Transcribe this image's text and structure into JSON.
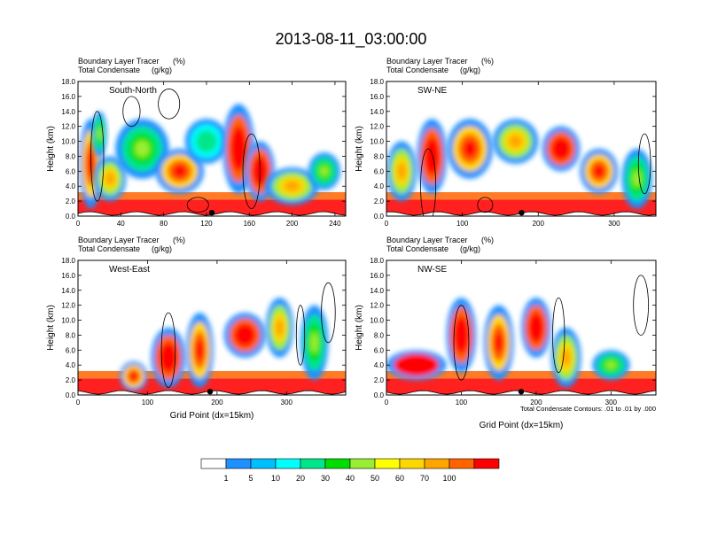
{
  "figure": {
    "title": "2013-08-11_03:00:00",
    "contour_note": "Total Condensate Contours: .01 to .01 by .000"
  },
  "colors": {
    "levels": [
      "#ffffff",
      "#1e90ff",
      "#00bfff",
      "#00ffff",
      "#00e68a",
      "#00dd00",
      "#99ee33",
      "#ffff00",
      "#ffd700",
      "#ffa500",
      "#ff6400",
      "#ff0000"
    ],
    "bottom_fill": "#ff2020",
    "contour": "#000000"
  },
  "colorbar": {
    "labels": [
      "1",
      "5",
      "10",
      "20",
      "30",
      "40",
      "50",
      "60",
      "70",
      "100"
    ]
  },
  "chart_data": [
    {
      "type": "heatmap",
      "name": "South-North",
      "subtitle_1_left": "Boundary Layer Tracer",
      "subtitle_1_right": "(%)",
      "subtitle_2_left": "Total Condensate",
      "subtitle_2_right": "(g/kg)",
      "ylabel": "Height (km)",
      "xlabel": "",
      "xlim": [
        0,
        250
      ],
      "ylim": [
        0,
        18
      ],
      "xticks": [
        0,
        40,
        80,
        120,
        160,
        200,
        240
      ],
      "xtick_labels": [
        "0",
        "40",
        "80",
        "120",
        "160",
        "200",
        "240"
      ],
      "yticks": [
        0,
        2,
        4,
        6,
        8,
        10,
        12,
        14,
        16,
        18
      ],
      "ytick_labels": [
        "0.0",
        "2.0",
        "4.0",
        "6.0",
        "8.0",
        "10.0",
        "12.0",
        "14.0",
        "16.0",
        "18.0"
      ],
      "marker_x": 125,
      "blobs": [
        {
          "x": 12,
          "y": 7,
          "w": 22,
          "h": 12,
          "v": 30
        },
        {
          "x": 20,
          "y": 11,
          "w": 14,
          "h": 6,
          "v": 10
        },
        {
          "x": 30,
          "y": 5,
          "w": 30,
          "h": 6,
          "v": 20
        },
        {
          "x": 60,
          "y": 9,
          "w": 50,
          "h": 8,
          "v": 10
        },
        {
          "x": 95,
          "y": 6,
          "w": 45,
          "h": 6,
          "v": 30
        },
        {
          "x": 120,
          "y": 10,
          "w": 40,
          "h": 6,
          "v": 5
        },
        {
          "x": 150,
          "y": 9,
          "w": 30,
          "h": 12,
          "v": 40
        },
        {
          "x": 170,
          "y": 6,
          "w": 28,
          "h": 8,
          "v": 50
        },
        {
          "x": 200,
          "y": 4,
          "w": 50,
          "h": 5,
          "v": 20
        },
        {
          "x": 230,
          "y": 6,
          "w": 30,
          "h": 5,
          "v": 10
        }
      ],
      "contours": [
        {
          "x": 18,
          "y": 8,
          "rx": 6,
          "ry": 6
        },
        {
          "x": 50,
          "y": 14,
          "rx": 8,
          "ry": 2
        },
        {
          "x": 85,
          "y": 15,
          "rx": 10,
          "ry": 2
        },
        {
          "x": 162,
          "y": 6,
          "rx": 8,
          "ry": 5
        },
        {
          "x": 112,
          "y": 1.5,
          "rx": 10,
          "ry": 1
        }
      ]
    },
    {
      "type": "heatmap",
      "name": "SW-NE",
      "subtitle_1_left": "Boundary Layer Tracer",
      "subtitle_1_right": "(%)",
      "subtitle_2_left": "Total Condensate",
      "subtitle_2_right": "(g/kg)",
      "ylabel": "Height (km)",
      "xlabel": "",
      "xlim": [
        0,
        355
      ],
      "ylim": [
        0,
        18
      ],
      "xticks": [
        0,
        100,
        200,
        300
      ],
      "xtick_labels": [
        "0",
        "100",
        "200",
        "300"
      ],
      "yticks": [
        0,
        2,
        4,
        6,
        8,
        10,
        12,
        14,
        16,
        18
      ],
      "ytick_labels": [
        "0.0",
        "2.0",
        "4.0",
        "6.0",
        "8.0",
        "10.0",
        "12.0",
        "14.0",
        "16.0",
        "18.0"
      ],
      "marker_x": 178,
      "blobs": [
        {
          "x": 20,
          "y": 6,
          "w": 40,
          "h": 8,
          "v": 20
        },
        {
          "x": 60,
          "y": 8,
          "w": 40,
          "h": 10,
          "v": 40
        },
        {
          "x": 110,
          "y": 9,
          "w": 60,
          "h": 8,
          "v": 30
        },
        {
          "x": 170,
          "y": 10,
          "w": 60,
          "h": 6,
          "v": 20
        },
        {
          "x": 230,
          "y": 9,
          "w": 50,
          "h": 6,
          "v": 40
        },
        {
          "x": 280,
          "y": 6,
          "w": 50,
          "h": 6,
          "v": 30
        },
        {
          "x": 330,
          "y": 5,
          "w": 40,
          "h": 8,
          "v": 10
        }
      ],
      "contours": [
        {
          "x": 55,
          "y": 4,
          "rx": 10,
          "ry": 5
        },
        {
          "x": 340,
          "y": 7,
          "rx": 8,
          "ry": 4
        },
        {
          "x": 130,
          "y": 1.5,
          "rx": 10,
          "ry": 1
        }
      ]
    },
    {
      "type": "heatmap",
      "name": "West-East",
      "subtitle_1_left": "Boundary Layer Tracer",
      "subtitle_1_right": "(%)",
      "subtitle_2_left": "Total Condensate",
      "subtitle_2_right": "(g/kg)",
      "ylabel": "Height (km)",
      "xlabel": "Grid Point (dx=15km)",
      "xlim": [
        0,
        385
      ],
      "ylim": [
        0,
        18
      ],
      "xticks": [
        0,
        100,
        200,
        300
      ],
      "xtick_labels": [
        "0",
        "100",
        "200",
        "300"
      ],
      "yticks": [
        0,
        2,
        4,
        6,
        8,
        10,
        12,
        14,
        16,
        18
      ],
      "ytick_labels": [
        "0.0",
        "2.0",
        "4.0",
        "6.0",
        "8.0",
        "10.0",
        "12.0",
        "14.0",
        "16.0",
        "18.0"
      ],
      "marker_x": 190,
      "blobs": [
        {
          "x": 80,
          "y": 2.5,
          "w": 40,
          "h": 4,
          "v": 30
        },
        {
          "x": 130,
          "y": 5,
          "w": 50,
          "h": 8,
          "v": 50
        },
        {
          "x": 175,
          "y": 6,
          "w": 40,
          "h": 10,
          "v": 30
        },
        {
          "x": 240,
          "y": 8,
          "w": 60,
          "h": 6,
          "v": 40
        },
        {
          "x": 290,
          "y": 9,
          "w": 40,
          "h": 8,
          "v": 20
        },
        {
          "x": 340,
          "y": 7,
          "w": 40,
          "h": 10,
          "v": 10
        }
      ],
      "contours": [
        {
          "x": 130,
          "y": 6,
          "rx": 10,
          "ry": 5
        },
        {
          "x": 360,
          "y": 11,
          "rx": 10,
          "ry": 4
        },
        {
          "x": 320,
          "y": 8,
          "rx": 6,
          "ry": 4
        }
      ]
    },
    {
      "type": "heatmap",
      "name": "NW-SE",
      "subtitle_1_left": "Boundary Layer Tracer",
      "subtitle_1_right": "(%)",
      "subtitle_2_left": "Total Condensate",
      "subtitle_2_right": "(g/kg)",
      "ylabel": "Height (km)",
      "xlabel": "Grid Point (dx=15km)",
      "xlim": [
        0,
        360
      ],
      "ylim": [
        0,
        18
      ],
      "xticks": [
        0,
        100,
        200,
        300
      ],
      "xtick_labels": [
        "0",
        "100",
        "200",
        "300"
      ],
      "yticks": [
        0,
        2,
        4,
        6,
        8,
        10,
        12,
        14,
        16,
        18
      ],
      "ytick_labels": [
        "0.0",
        "2.0",
        "4.0",
        "6.0",
        "8.0",
        "10.0",
        "12.0",
        "14.0",
        "16.0",
        "18.0"
      ],
      "marker_x": 180,
      "blobs": [
        {
          "x": 40,
          "y": 4,
          "w": 80,
          "h": 4,
          "v": 60
        },
        {
          "x": 100,
          "y": 8,
          "w": 40,
          "h": 10,
          "v": 40
        },
        {
          "x": 150,
          "y": 7,
          "w": 40,
          "h": 10,
          "v": 30
        },
        {
          "x": 200,
          "y": 9,
          "w": 40,
          "h": 8,
          "v": 40
        },
        {
          "x": 240,
          "y": 5,
          "w": 40,
          "h": 8,
          "v": 20
        },
        {
          "x": 300,
          "y": 4,
          "w": 50,
          "h": 4,
          "v": 10
        }
      ],
      "contours": [
        {
          "x": 100,
          "y": 7,
          "rx": 10,
          "ry": 5
        },
        {
          "x": 230,
          "y": 8,
          "rx": 8,
          "ry": 5
        },
        {
          "x": 340,
          "y": 12,
          "rx": 10,
          "ry": 4
        }
      ]
    }
  ]
}
